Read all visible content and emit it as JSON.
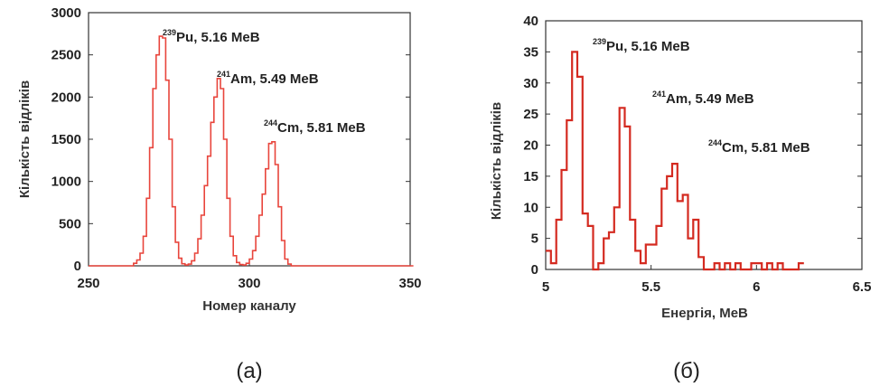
{
  "chart_data": [
    {
      "type": "line",
      "caption": "(a)",
      "xlabel": "Номер каналу",
      "ylabel": "Кількість відліків",
      "xlim": [
        250,
        350
      ],
      "ylim": [
        0,
        3000
      ],
      "xticks": [
        "250",
        "300",
        "350"
      ],
      "yticks": [
        "0",
        "500",
        "1000",
        "1500",
        "2000",
        "2500",
        "3000"
      ],
      "line_color": "#e8453c",
      "step": true,
      "series": [
        {
          "x": [
            250,
            262,
            264,
            265,
            266,
            267,
            268,
            269,
            270,
            271,
            272,
            273,
            274,
            275,
            276,
            277,
            278,
            279,
            280,
            281,
            282,
            283,
            284,
            285,
            286,
            287,
            288,
            289,
            290,
            291,
            292,
            293,
            294,
            295,
            296,
            297,
            298,
            299,
            300,
            301,
            302,
            303,
            304,
            305,
            306,
            307,
            308,
            309,
            310,
            311,
            312,
            313,
            350
          ],
          "values": [
            0,
            0,
            30,
            70,
            150,
            350,
            800,
            1400,
            2100,
            2500,
            2720,
            2700,
            2200,
            1500,
            700,
            280,
            90,
            25,
            10,
            20,
            60,
            150,
            320,
            600,
            950,
            1300,
            1700,
            2000,
            2220,
            2100,
            1500,
            800,
            350,
            120,
            40,
            15,
            10,
            30,
            80,
            180,
            350,
            600,
            850,
            1150,
            1450,
            1470,
            1200,
            700,
            300,
            80,
            20,
            0,
            0
          ]
        }
      ],
      "annotations": [
        {
          "sup": "239",
          "text": "Pu, 5.16 MeB"
        },
        {
          "sup": "241",
          "text": "Am, 5.49 MeB"
        },
        {
          "sup": "244",
          "text": "Cm, 5.81 MeB"
        }
      ]
    },
    {
      "type": "line",
      "caption": "(б)",
      "xlabel": "Енергія,  МеВ",
      "ylabel": "Кількість відліків",
      "xlim": [
        5,
        6.5
      ],
      "ylim": [
        0,
        40
      ],
      "xticks": [
        "5",
        "5.5",
        "6",
        "6.5"
      ],
      "yticks": [
        "0",
        "5",
        "10",
        "15",
        "20",
        "25",
        "30",
        "35",
        "40"
      ],
      "line_color": "#d42a20",
      "step": true,
      "series": [
        {
          "x": [
            5.0,
            5.025,
            5.05,
            5.075,
            5.1,
            5.125,
            5.15,
            5.175,
            5.2,
            5.225,
            5.25,
            5.275,
            5.3,
            5.325,
            5.35,
            5.375,
            5.4,
            5.425,
            5.45,
            5.475,
            5.5,
            5.525,
            5.55,
            5.575,
            5.6,
            5.625,
            5.65,
            5.675,
            5.7,
            5.725,
            5.75,
            5.775,
            5.8,
            5.825,
            5.85,
            5.875,
            5.9,
            5.925,
            5.95,
            5.975,
            6.0,
            6.025,
            6.05,
            6.075,
            6.1,
            6.125,
            6.15,
            6.175,
            6.2
          ],
          "values": [
            3,
            1,
            8,
            16,
            24,
            35,
            31,
            9,
            7,
            0,
            1,
            5,
            6,
            10,
            26,
            23,
            8,
            3,
            1,
            4,
            4,
            7,
            13,
            15,
            17,
            11,
            12,
            5,
            8,
            2,
            0,
            0,
            1,
            0,
            1,
            0,
            1,
            0,
            0,
            1,
            1,
            0,
            1,
            0,
            1,
            0,
            0,
            0,
            1
          ]
        }
      ],
      "annotations": [
        {
          "sup": "239",
          "text": "Pu, 5.16 MeB"
        },
        {
          "sup": "241",
          "text": "Am, 5.49 MeB"
        },
        {
          "sup": "244",
          "text": "Cm, 5.81 MeB"
        }
      ]
    }
  ]
}
